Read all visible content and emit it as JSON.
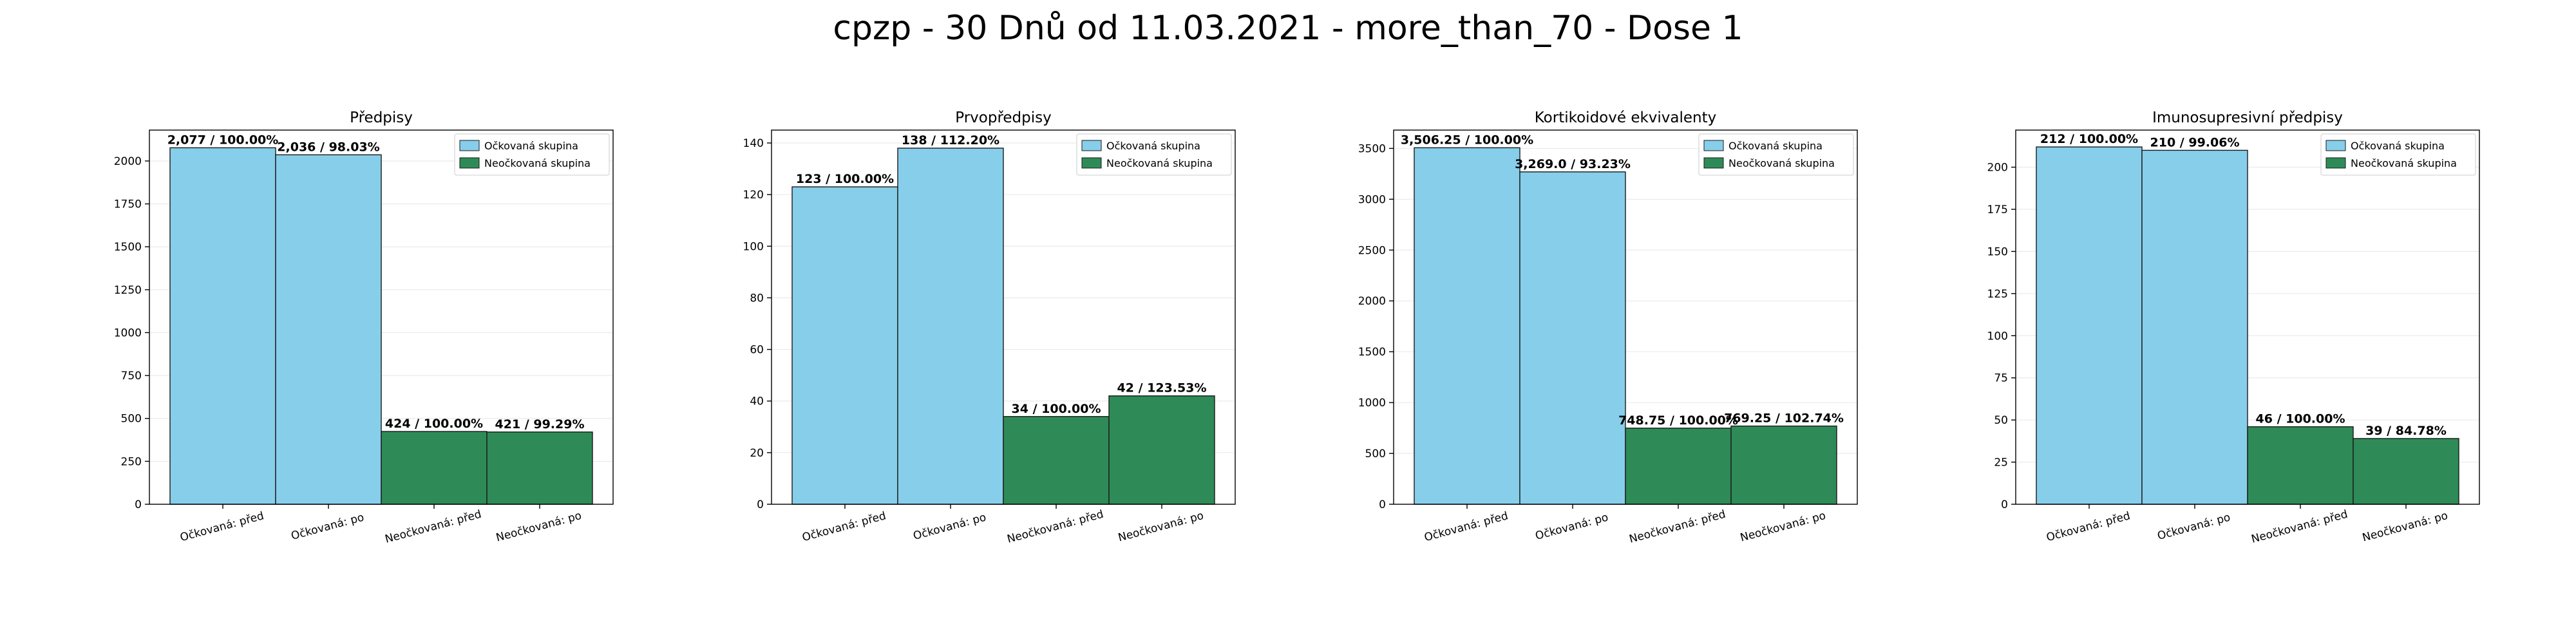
{
  "page": {
    "title": "cpzp - 30 Dnů od 11.03.2021 - more_than_70 - Dose 1"
  },
  "colors": {
    "vaccinated": "#87CEEB",
    "unvaccinated": "#2E8B57"
  },
  "chart_data": [
    {
      "type": "bar",
      "title": "Předpisy",
      "categories": [
        "Očkovaná: před",
        "Očkovaná: po",
        "Neočkovaná: před",
        "Neočkovaná: po"
      ],
      "series": [
        {
          "name": "Očkovaná skupina",
          "values": [
            2077,
            2036,
            null,
            null
          ]
        },
        {
          "name": "Neočkovaná skupina",
          "values": [
            null,
            null,
            424,
            421
          ]
        }
      ],
      "data_labels": [
        "2,077 / 100.00%",
        "2,036 / 98.03%",
        "424 / 100.00%",
        "421 / 99.29%"
      ],
      "ylim": [
        0,
        2180
      ],
      "yticks": [
        0,
        250,
        500,
        750,
        1000,
        1250,
        1500,
        1750,
        2000
      ],
      "legend": "top-right",
      "grid": "y"
    },
    {
      "type": "bar",
      "title": "Prvopředpisy",
      "categories": [
        "Očkovaná: před",
        "Očkovaná: po",
        "Neočkovaná: před",
        "Neočkovaná: po"
      ],
      "series": [
        {
          "name": "Očkovaná skupina",
          "values": [
            123,
            138,
            null,
            null
          ]
        },
        {
          "name": "Neočkovaná skupina",
          "values": [
            null,
            null,
            34,
            42
          ]
        }
      ],
      "data_labels": [
        "123 / 100.00%",
        "138 / 112.20%",
        "34 / 100.00%",
        "42 / 123.53%"
      ],
      "ylim": [
        0,
        145
      ],
      "yticks": [
        0,
        20,
        40,
        60,
        80,
        100,
        120,
        140
      ],
      "legend": "top-right",
      "grid": "y"
    },
    {
      "type": "bar",
      "title": "Kortikoidové ekvivalenty",
      "categories": [
        "Očkovaná: před",
        "Očkovaná: po",
        "Neočkovaná: před",
        "Neočkovaná: po"
      ],
      "series": [
        {
          "name": "Očkovaná skupina",
          "values": [
            3506.25,
            3269.0,
            null,
            null
          ]
        },
        {
          "name": "Neočkovaná skupina",
          "values": [
            null,
            null,
            748.75,
            769.25
          ]
        }
      ],
      "data_labels": [
        "3,506.25 / 100.00%",
        "3,269.0 / 93.23%",
        "748.75 / 100.00%",
        "769.25 / 102.74%"
      ],
      "ylim": [
        0,
        3680
      ],
      "yticks": [
        0,
        500,
        1000,
        1500,
        2000,
        2500,
        3000,
        3500
      ],
      "legend": "top-right",
      "grid": "y"
    },
    {
      "type": "bar",
      "title": "Imunosupresivní předpisy",
      "categories": [
        "Očkovaná: před",
        "Očkovaná: po",
        "Neočkovaná: před",
        "Neočkovaná: po"
      ],
      "series": [
        {
          "name": "Očkovaná skupina",
          "values": [
            212,
            210,
            null,
            null
          ]
        },
        {
          "name": "Neočkovaná skupina",
          "values": [
            null,
            null,
            46,
            39
          ]
        }
      ],
      "data_labels": [
        "212 / 100.00%",
        "210 / 99.06%",
        "46 / 100.00%",
        "39 / 84.78%"
      ],
      "ylim": [
        0,
        222
      ],
      "yticks": [
        0,
        25,
        50,
        75,
        100,
        125,
        150,
        175,
        200
      ],
      "legend": "top-right",
      "grid": "y"
    }
  ]
}
